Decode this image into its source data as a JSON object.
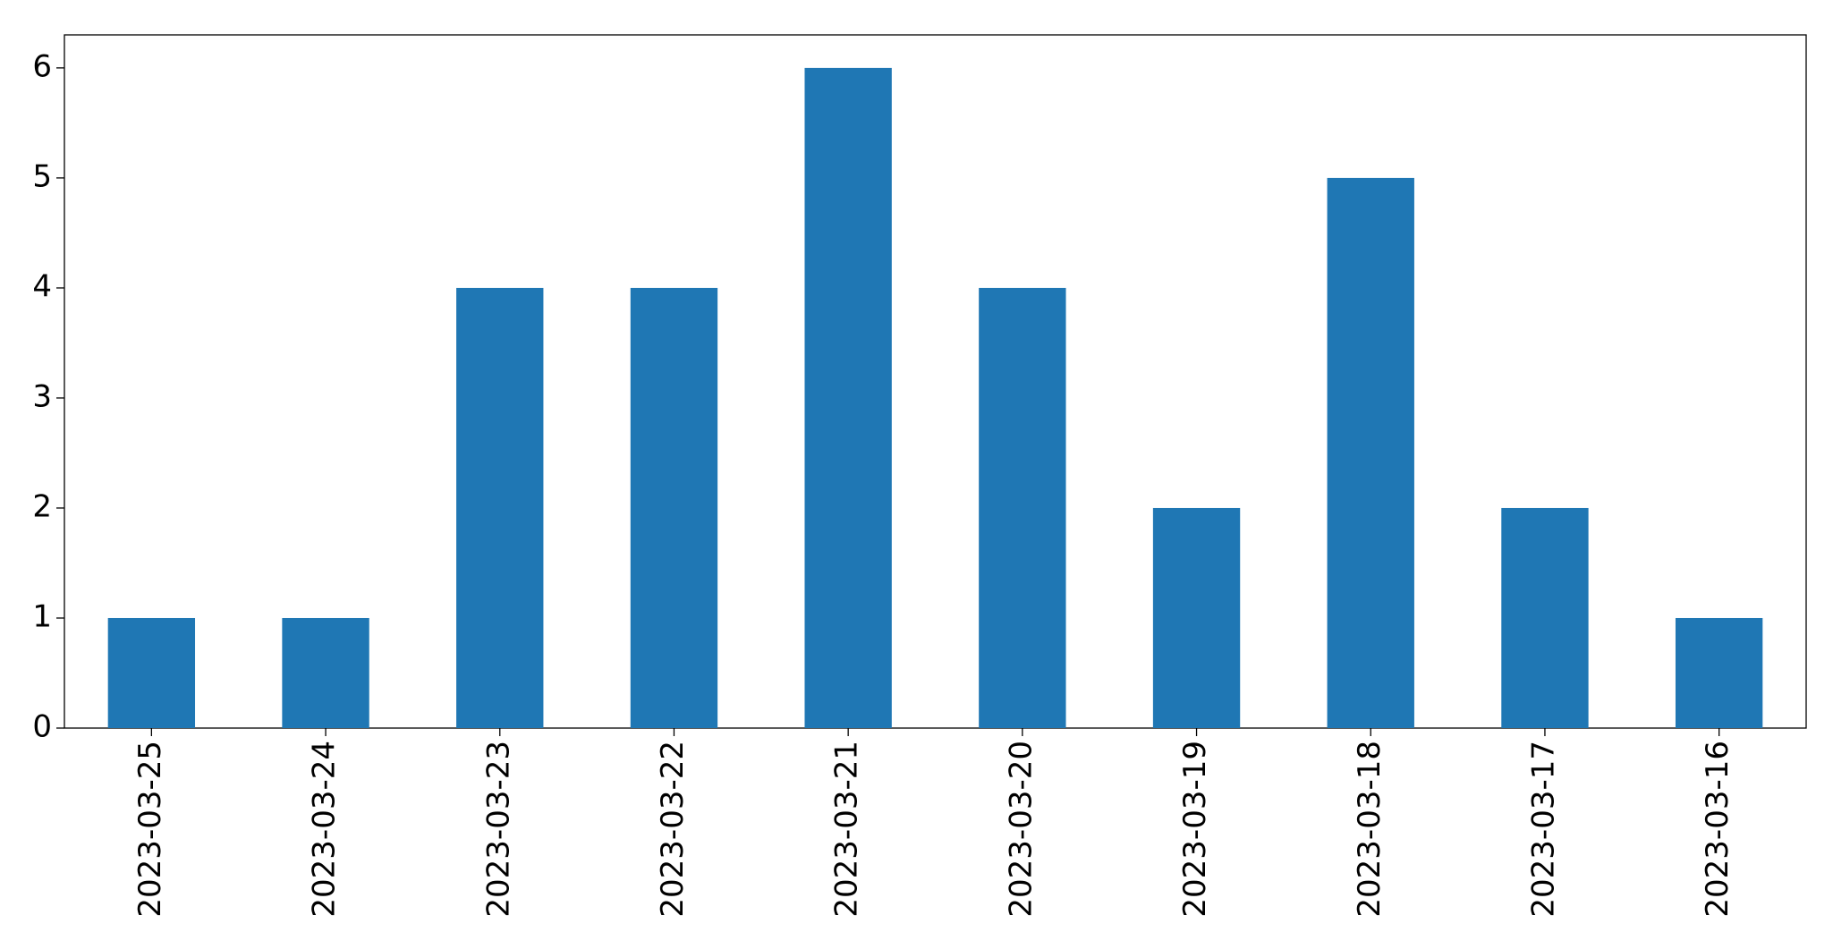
{
  "chart_data": {
    "type": "bar",
    "categories": [
      "2023-03-25",
      "2023-03-24",
      "2023-03-23",
      "2023-03-22",
      "2023-03-21",
      "2023-03-20",
      "2023-03-19",
      "2023-03-18",
      "2023-03-17",
      "2023-03-16"
    ],
    "values": [
      1,
      1,
      4,
      4,
      6,
      4,
      2,
      5,
      2,
      1
    ],
    "color": "#1f77b4",
    "ylim": [
      0,
      6.3
    ],
    "yticks": [
      0,
      1,
      2,
      3,
      4,
      5,
      6
    ],
    "grid": false
  }
}
